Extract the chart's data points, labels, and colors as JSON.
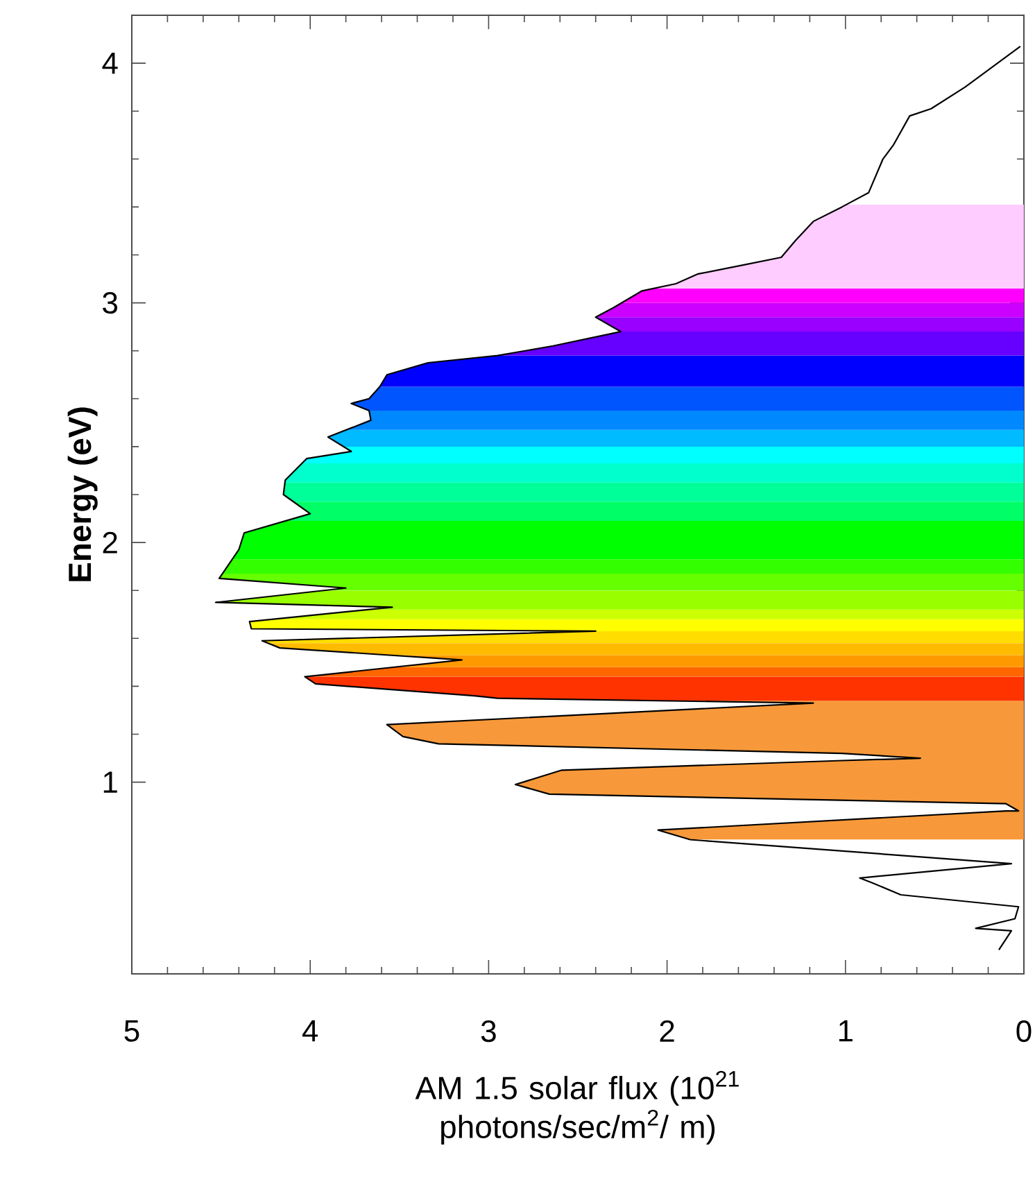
{
  "chart_data": {
    "type": "line",
    "xlabel": "AM 1.5 solar flux (10$^{21}$ photons/sec/m$^{2}$/ m)",
    "ylabel": "Energy (eV)",
    "xlim": [
      5,
      0
    ],
    "ylim": [
      0.2,
      4.2
    ],
    "xticks": [
      5,
      4,
      3,
      2,
      1,
      0
    ],
    "yticks": [
      1,
      2,
      3,
      4
    ],
    "marker": "none",
    "line_style": "solid",
    "series": [
      {
        "color": "#000000",
        "x": [
          0.02,
          0.33,
          0.52,
          0.64,
          0.73,
          0.79,
          0.87,
          1.02,
          1.18,
          1.28,
          1.36,
          1.56,
          1.83,
          1.95,
          2.14,
          2.3,
          2.4,
          2.26,
          2.64,
          2.95,
          3.34,
          3.57,
          3.61,
          3.67,
          3.77,
          3.67,
          3.66,
          3.9,
          3.77,
          4.02,
          4.14,
          4.15,
          4.0,
          4.37,
          4.4,
          4.51,
          3.8,
          4.53,
          3.54,
          4.34,
          4.33,
          2.4,
          4.27,
          4.17,
          3.15,
          4.03,
          3.97,
          3.08,
          2.95,
          1.18,
          3.57,
          3.48,
          3.28,
          1.02,
          0.58,
          1.02,
          2.59,
          2.85,
          2.66,
          0.1,
          0.03,
          0.1,
          2.05,
          1.87,
          0.07,
          0.92,
          0.85,
          0.69,
          0.03,
          0.05,
          0.27,
          0.07,
          0.14
        ],
        "values": [
          4.07,
          3.9,
          3.81,
          3.78,
          3.66,
          3.6,
          3.46,
          3.4,
          3.34,
          3.26,
          3.19,
          3.16,
          3.12,
          3.08,
          3.05,
          2.98,
          2.94,
          2.88,
          2.82,
          2.78,
          2.75,
          2.7,
          2.65,
          2.6,
          2.58,
          2.55,
          2.51,
          2.44,
          2.38,
          2.35,
          2.26,
          2.2,
          2.12,
          2.04,
          1.97,
          1.85,
          1.81,
          1.75,
          1.73,
          1.67,
          1.64,
          1.63,
          1.59,
          1.56,
          1.51,
          1.44,
          1.41,
          1.36,
          1.35,
          1.33,
          1.24,
          1.19,
          1.16,
          1.12,
          1.1,
          1.09,
          1.05,
          0.99,
          0.95,
          0.91,
          0.88,
          0.88,
          0.8,
          0.76,
          0.66,
          0.6,
          0.58,
          0.53,
          0.48,
          0.43,
          0.39,
          0.38,
          0.3
        ]
      }
    ],
    "bands": [
      {
        "axis": "y",
        "from": 0.76,
        "to": 1.34,
        "color": "#f7993a"
      },
      {
        "axis": "y",
        "from": 1.34,
        "to": 1.44,
        "color": "#ff3300"
      },
      {
        "axis": "y",
        "from": 1.44,
        "to": 1.48,
        "color": "#ff6600"
      },
      {
        "axis": "y",
        "from": 1.48,
        "to": 1.53,
        "color": "#ff9900"
      },
      {
        "axis": "y",
        "from": 1.53,
        "to": 1.58,
        "color": "#ffbb00"
      },
      {
        "axis": "y",
        "from": 1.58,
        "to": 1.63,
        "color": "#ffdd00"
      },
      {
        "axis": "y",
        "from": 1.63,
        "to": 1.68,
        "color": "#ffff00"
      },
      {
        "axis": "y",
        "from": 1.68,
        "to": 1.72,
        "color": "#ccff00"
      },
      {
        "axis": "y",
        "from": 1.72,
        "to": 1.8,
        "color": "#99ff00"
      },
      {
        "axis": "y",
        "from": 1.8,
        "to": 1.87,
        "color": "#66ff00"
      },
      {
        "axis": "y",
        "from": 1.87,
        "to": 1.93,
        "color": "#33ff00"
      },
      {
        "axis": "y",
        "from": 1.93,
        "to": 2.09,
        "color": "#00ff00"
      },
      {
        "axis": "y",
        "from": 2.09,
        "to": 2.17,
        "color": "#00ff66"
      },
      {
        "axis": "y",
        "from": 2.17,
        "to": 2.25,
        "color": "#00ff99"
      },
      {
        "axis": "y",
        "from": 2.25,
        "to": 2.33,
        "color": "#00ffcc"
      },
      {
        "axis": "y",
        "from": 2.33,
        "to": 2.4,
        "color": "#00ffff"
      },
      {
        "axis": "y",
        "from": 2.4,
        "to": 2.47,
        "color": "#00bbff"
      },
      {
        "axis": "y",
        "from": 2.47,
        "to": 2.55,
        "color": "#0088ff"
      },
      {
        "axis": "y",
        "from": 2.55,
        "to": 2.65,
        "color": "#0055ff"
      },
      {
        "axis": "y",
        "from": 2.65,
        "to": 2.78,
        "color": "#0000ff"
      },
      {
        "axis": "y",
        "from": 2.78,
        "to": 2.88,
        "color": "#6600ff"
      },
      {
        "axis": "y",
        "from": 2.88,
        "to": 2.94,
        "color": "#9900ff"
      },
      {
        "axis": "y",
        "from": 2.94,
        "to": 3.0,
        "color": "#cc00ff"
      },
      {
        "axis": "y",
        "from": 3.0,
        "to": 3.06,
        "color": "#ff00ff"
      },
      {
        "axis": "y",
        "from": 3.06,
        "to": 3.41,
        "color": "#ffccff"
      }
    ]
  }
}
